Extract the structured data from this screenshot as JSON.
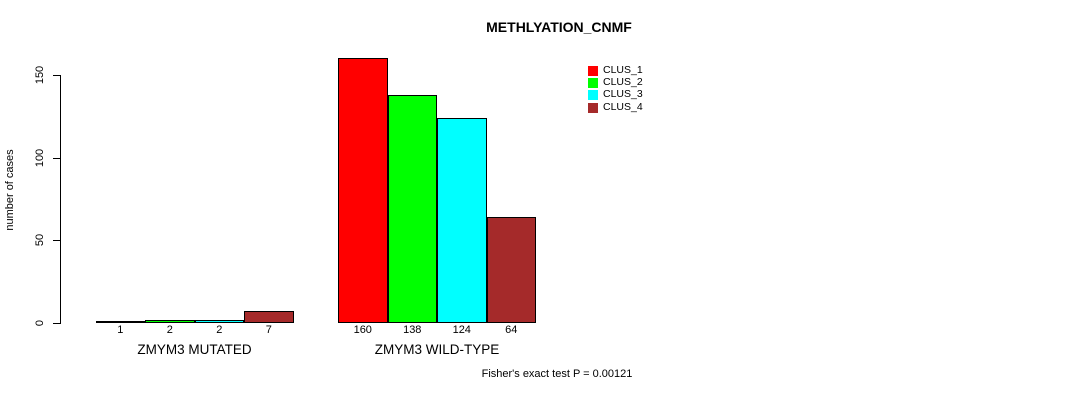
{
  "chart_data": {
    "type": "bar",
    "title": "METHLYATION_CNMF",
    "xlabel": "",
    "ylabel": "number of cases",
    "ylim": [
      0,
      160
    ],
    "y_ticks": [
      0,
      50,
      100,
      150
    ],
    "grid": false,
    "legend_position": "top-right",
    "bar_value_labels": true,
    "categories": [
      "ZMYM3 MUTATED",
      "ZMYM3 WILD-TYPE"
    ],
    "series": [
      {
        "name": "CLUS_1",
        "color": "#FF0000",
        "values": [
          1,
          160
        ]
      },
      {
        "name": "CLUS_2",
        "color": "#00FF00",
        "values": [
          2,
          138
        ]
      },
      {
        "name": "CLUS_3",
        "color": "#00FFFF",
        "values": [
          2,
          124
        ]
      },
      {
        "name": "CLUS_4",
        "color": "#A52A2A",
        "values": [
          7,
          64
        ]
      }
    ],
    "annotation": "Fisher's exact test P = 0.00121"
  }
}
